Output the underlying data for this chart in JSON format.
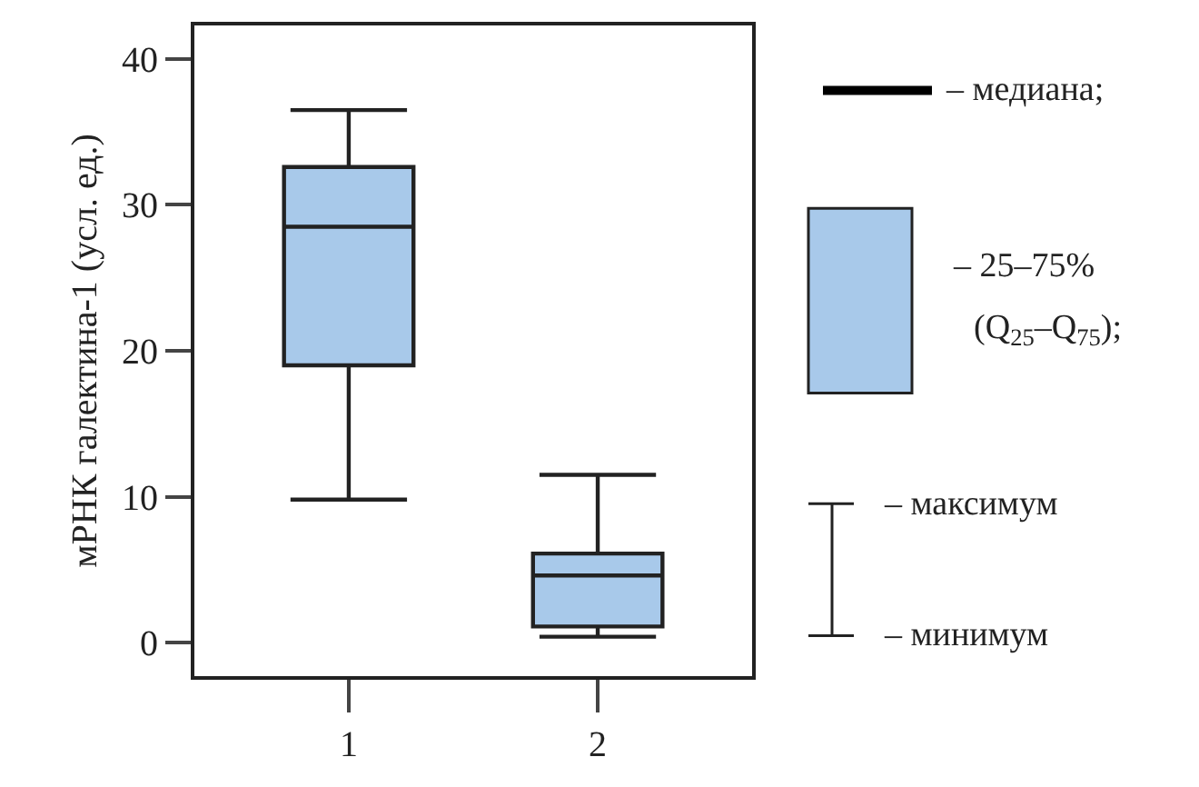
{
  "chart_data": {
    "type": "box",
    "ylabel": "мРНК галектина-1 (усл. ед.)",
    "categories": [
      "1",
      "2"
    ],
    "series": [
      {
        "color": "#a8c9ea",
        "boxes": [
          {
            "low": 9.8,
            "q1": 19.0,
            "median": 28.5,
            "q3": 32.6,
            "high": 36.5
          },
          {
            "low": 0.4,
            "q1": 1.1,
            "median": 4.6,
            "q3": 6.1,
            "high": 11.5
          }
        ]
      }
    ],
    "ylim": [
      -2.3,
      42.3
    ],
    "yticks": [
      0,
      10,
      20,
      30,
      40
    ],
    "annotations": [
      "– медиана;",
      "– 25–75%",
      "(Q$_{25}$–Q$_{75}$);",
      "– максимум",
      "– минимум"
    ]
  }
}
